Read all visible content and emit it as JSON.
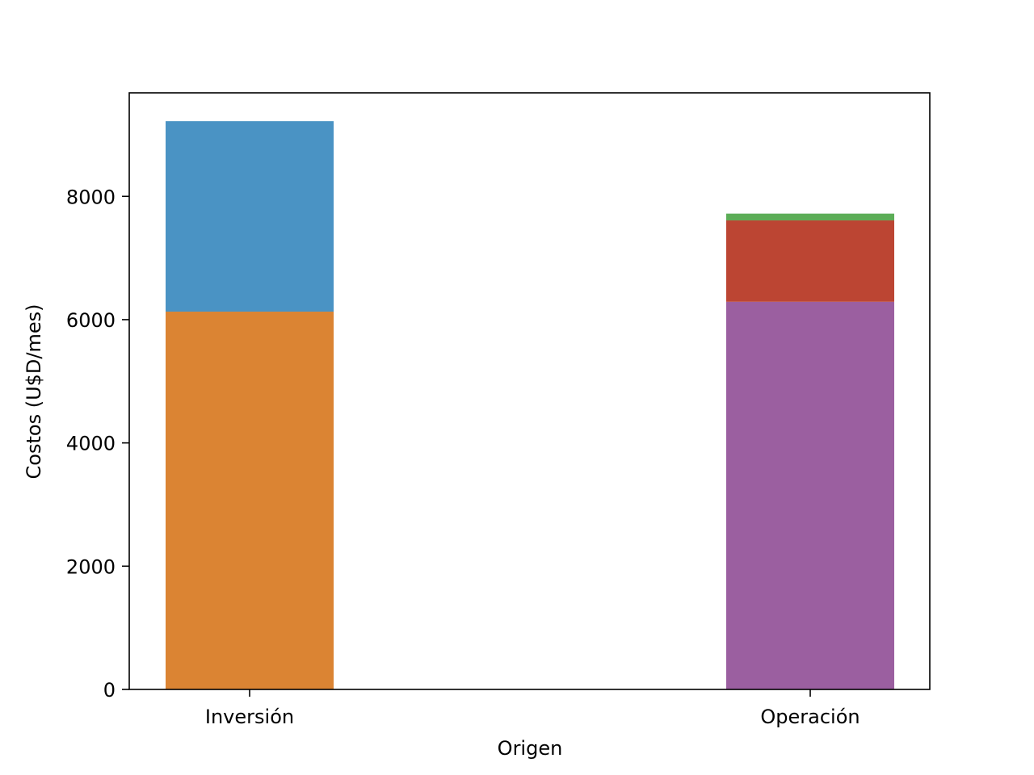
{
  "chart_data": {
    "type": "bar",
    "stacked": true,
    "title": "",
    "xlabel": "Origen",
    "ylabel": "Costos (U$D/mes)",
    "categories": [
      "Inversión",
      "Operación"
    ],
    "ylim": [
      0,
      9680
    ],
    "yticks": [
      0,
      2000,
      4000,
      6000,
      8000
    ],
    "legend": "none",
    "grid": false,
    "series": [
      {
        "values": [
          6130,
          0
        ],
        "color": "#db8433"
      },
      {
        "values": [
          3090,
          0
        ],
        "color": "#4a93c4"
      },
      {
        "values": [
          0,
          6290
        ],
        "color": "#9b5fa0"
      },
      {
        "values": [
          0,
          1320
        ],
        "color": "#bc4533"
      },
      {
        "values": [
          0,
          110
        ],
        "color": "#5cad57"
      }
    ]
  }
}
